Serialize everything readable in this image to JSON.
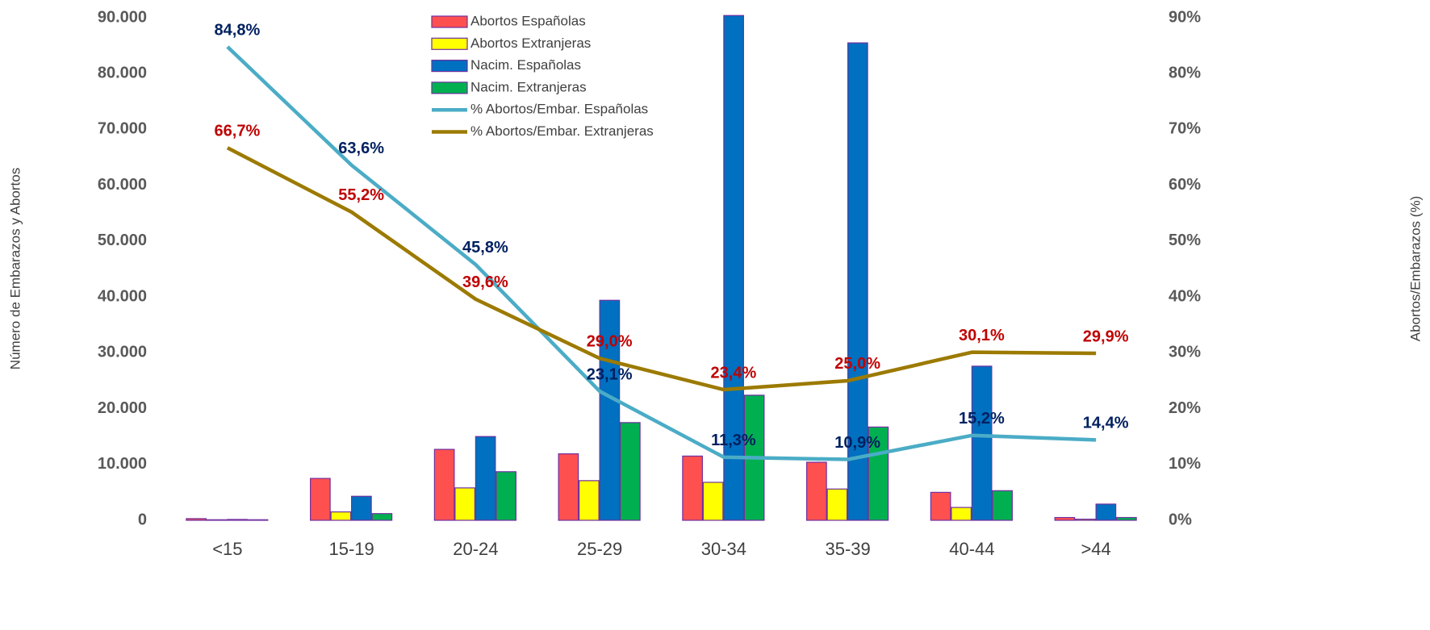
{
  "chart_data": {
    "type": "bar",
    "y_label": "Número de Embarazos  y Abortos",
    "y2_label": "Abortos/Embarazos (%)",
    "categories": [
      "<15",
      "15-19",
      "20-24",
      "25-29",
      "30-34",
      "35-39",
      "40-44",
      ">44"
    ],
    "series": [
      {
        "name": "Abortos Españolas",
        "type": "bar",
        "color": "#ff5050",
        "values": [
          300,
          7500,
          12700,
          11900,
          11500,
          10400,
          5000,
          500
        ]
      },
      {
        "name": "Abortos Extranjeras",
        "type": "bar",
        "color": "#ffff00",
        "values": [
          100,
          1500,
          5800,
          7100,
          6800,
          5600,
          2300,
          200
        ]
      },
      {
        "name": "Nacim. Españolas",
        "type": "bar",
        "color": "#0070c0",
        "values": [
          150,
          4300,
          15000,
          39400,
          90400,
          85500,
          27600,
          2900
        ]
      },
      {
        "name": "Nacim. Extranjeras",
        "type": "bar",
        "color": "#00b050",
        "values": [
          100,
          1200,
          8700,
          17500,
          22400,
          16700,
          5300,
          500
        ]
      },
      {
        "name": "% Abortos/Embar. Españolas",
        "type": "line",
        "axis": "y2",
        "color": "#4bacc6",
        "label_color": "#002060",
        "values": [
          84.8,
          63.6,
          45.8,
          23.1,
          11.3,
          10.9,
          15.2,
          14.4
        ],
        "value_labels": [
          "84,8%",
          "63,6%",
          "45,8%",
          "23,1%",
          "11,3%",
          "10,9%",
          "15,2%",
          "14,4%"
        ]
      },
      {
        "name": "% Abortos/Embar. Extranjeras",
        "type": "line",
        "axis": "y2",
        "color": "#9c7a00",
        "label_color": "#c00000",
        "values": [
          66.7,
          55.2,
          39.6,
          29.0,
          23.4,
          25.0,
          30.1,
          29.9
        ],
        "value_labels": [
          "66,7%",
          "55,2%",
          "39,6%",
          "29,0%",
          "23,4%",
          "25,0%",
          "30,1%",
          "29,9%"
        ]
      }
    ],
    "ylim": [
      0,
      90000
    ],
    "yticks": [
      0,
      {
        "value": 10000,
        "label": "10.000"
      },
      {
        "value": 20000,
        "label": "20.000"
      },
      {
        "value": 30000,
        "label": "30.000"
      },
      {
        "value": 40000,
        "label": "40.000"
      },
      {
        "value": 50000,
        "label": "50.000"
      },
      {
        "value": 60000,
        "label": "60.000"
      },
      {
        "value": 70000,
        "label": "70.000"
      },
      {
        "value": 80000,
        "label": "80.000"
      },
      {
        "value": 90000,
        "label": "90.000"
      }
    ],
    "y2lim": [
      0,
      90
    ],
    "y2ticks": [
      {
        "value": 0,
        "label": "0%"
      },
      {
        "value": 10,
        "label": "10%"
      },
      {
        "value": 20,
        "label": "20%"
      },
      {
        "value": 30,
        "label": "30%"
      },
      {
        "value": 40,
        "label": "40%"
      },
      {
        "value": 50,
        "label": "50%"
      },
      {
        "value": 60,
        "label": "60%"
      },
      {
        "value": 70,
        "label": "70%"
      },
      {
        "value": 80,
        "label": "80%"
      },
      {
        "value": 90,
        "label": "90%"
      }
    ],
    "grid": false,
    "legend": "top"
  }
}
